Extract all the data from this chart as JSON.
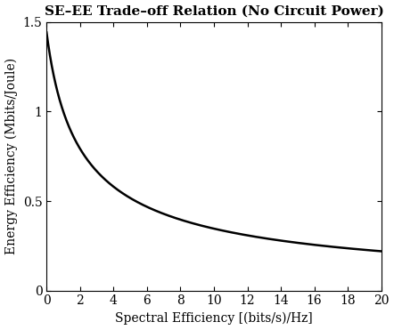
{
  "title": "SE–EE Trade–off Relation (No Circuit Power)",
  "xlabel": "Spectral Efficiency [(bits/s)/Hz]",
  "ylabel": "Energy Efficiency (Mbits/Joule)",
  "xlim": [
    0,
    20
  ],
  "ylim": [
    0,
    1.5
  ],
  "x_ticks": [
    0,
    2,
    4,
    6,
    8,
    10,
    12,
    14,
    16,
    18,
    20
  ],
  "y_ticks": [
    0,
    0.5,
    1.0,
    1.5
  ],
  "line_color": "#000000",
  "line_width": 1.8,
  "background_color": "#ffffff",
  "title_fontsize": 11,
  "label_fontsize": 10,
  "tick_fontsize": 10
}
